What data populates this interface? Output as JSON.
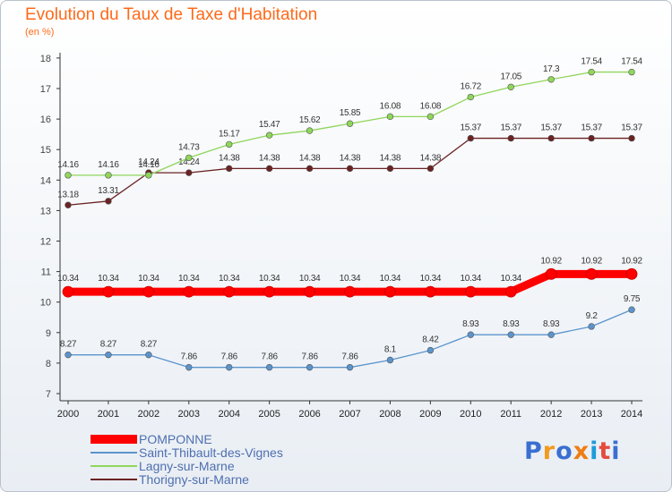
{
  "title": "Evolution du Taux de Taxe d'Habitation",
  "unit_label": "(en %)",
  "brand": "Proxiti",
  "chart_data": {
    "type": "line",
    "x": [
      "2000",
      "2001",
      "2002",
      "2003",
      "2004",
      "2005",
      "2006",
      "2007",
      "2008",
      "2009",
      "2010",
      "2011",
      "2012",
      "2013",
      "2014"
    ],
    "ylim": [
      7,
      18
    ],
    "yticks": [
      7,
      8,
      9,
      10,
      11,
      12,
      13,
      14,
      15,
      16,
      17,
      18
    ],
    "grid": false,
    "legend_position": "bottom-left",
    "series": [
      {
        "name": "POMPONNE",
        "color": "#ff0000",
        "emphasis": true,
        "values": [
          10.34,
          10.34,
          10.34,
          10.34,
          10.34,
          10.34,
          10.34,
          10.34,
          10.34,
          10.34,
          10.34,
          10.34,
          10.92,
          10.92,
          10.92
        ],
        "labels": [
          "10.34",
          "10.34",
          "10.34",
          "10.34",
          "10.34",
          "10.34",
          "10.34",
          "10.34",
          "10.34",
          "10.34",
          "10.34",
          "10.34",
          "10.92",
          "10.92",
          "10.92"
        ]
      },
      {
        "name": "Saint-Thibault-des-Vignes",
        "color": "#5b94cc",
        "values": [
          8.27,
          8.27,
          8.27,
          7.86,
          7.86,
          7.86,
          7.86,
          7.86,
          8.1,
          8.42,
          8.93,
          8.93,
          8.93,
          9.2,
          9.75
        ],
        "labels": [
          "8.27",
          "8.27",
          "8.27",
          "7.86",
          "7.86",
          "7.86",
          "7.86",
          "7.86",
          "8.1",
          "8.42",
          "8.93",
          "8.93",
          "8.93",
          "9.2",
          "9.75"
        ]
      },
      {
        "name": "Lagny-sur-Marne",
        "color": "#8fd65a",
        "values": [
          14.16,
          14.16,
          14.16,
          14.73,
          15.17,
          15.47,
          15.62,
          15.85,
          16.08,
          16.08,
          16.72,
          17.05,
          17.3,
          17.54,
          17.54
        ],
        "labels": [
          "14.16",
          "14.16",
          "14.16",
          "14.73",
          "15.17",
          "15.47",
          "15.62",
          "15.85",
          "16.08",
          "16.08",
          "16.72",
          "17.05",
          "17.3",
          "17.54",
          "17.54"
        ]
      },
      {
        "name": "Thorigny-sur-Marne",
        "color": "#6b2222",
        "values": [
          13.18,
          13.31,
          14.24,
          14.24,
          14.38,
          14.38,
          14.38,
          14.38,
          14.38,
          14.38,
          15.37,
          15.37,
          15.37,
          15.37,
          15.37
        ],
        "labels": [
          "13.18",
          "13.31",
          "14.24",
          "14.24",
          "14.38",
          "14.38",
          "14.38",
          "14.38",
          "14.38",
          "14.38",
          "15.37",
          "15.37",
          "15.37",
          "15.37",
          "15.37"
        ]
      }
    ]
  }
}
